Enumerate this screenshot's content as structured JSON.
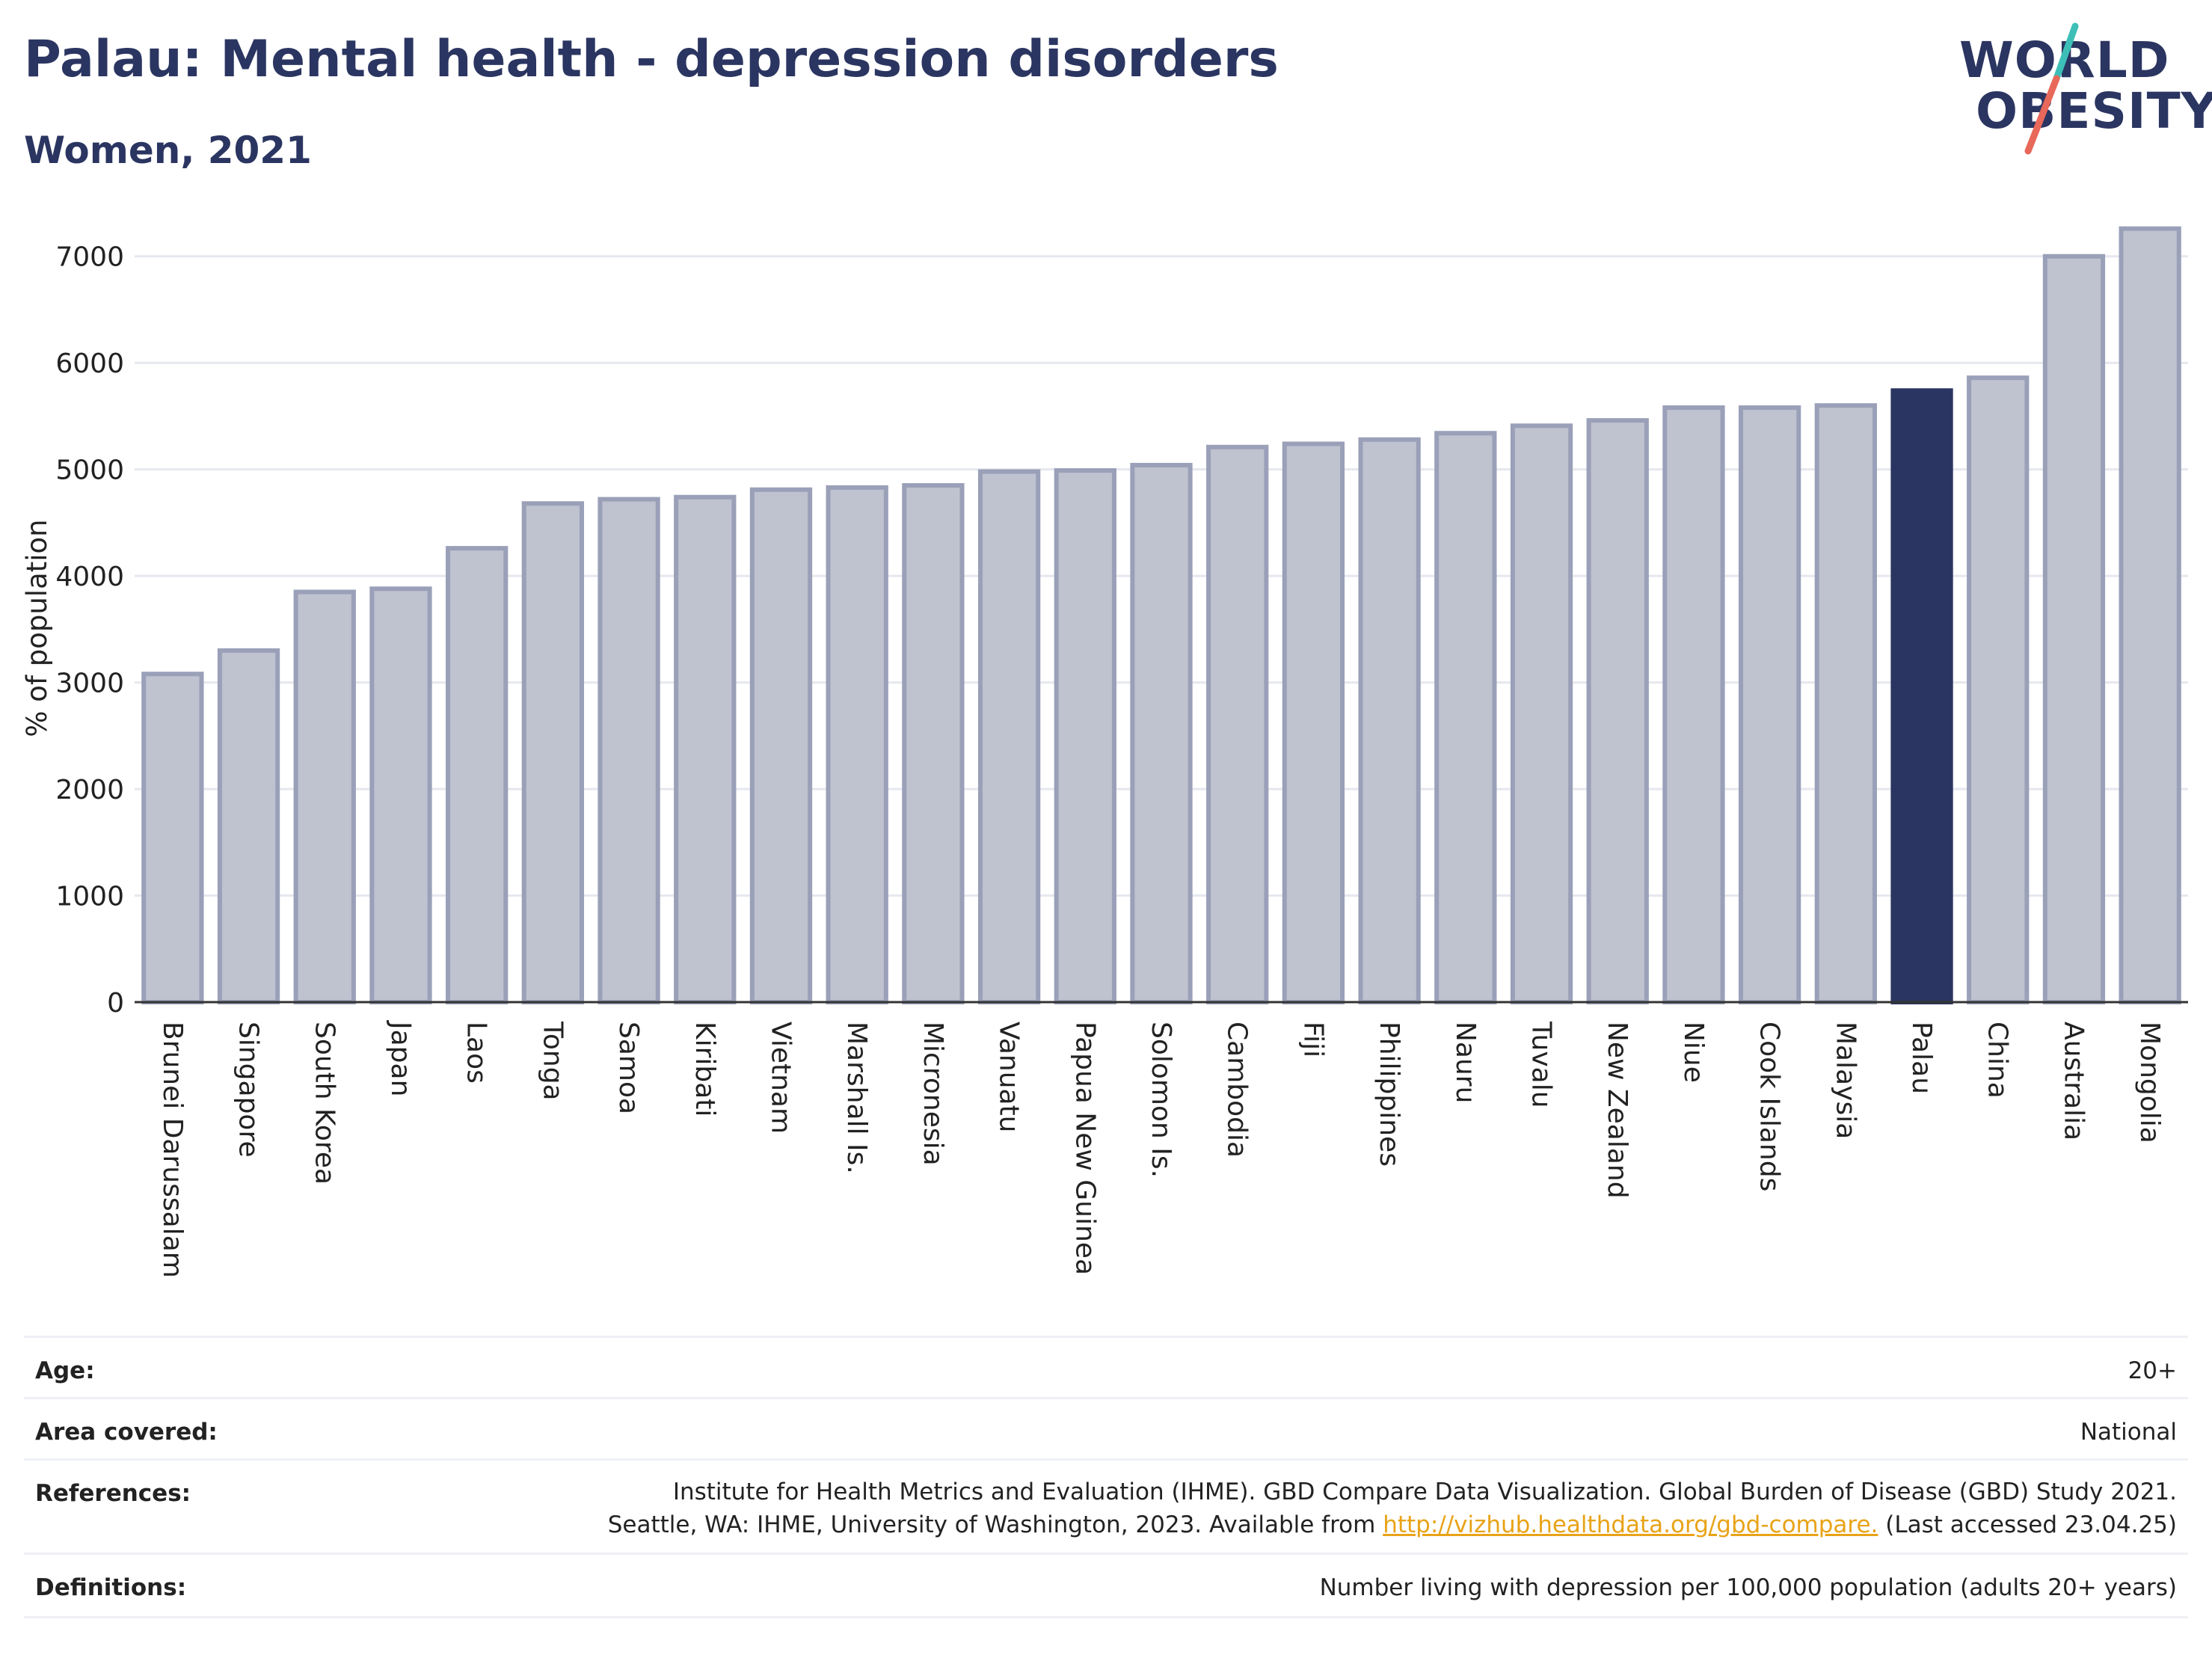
{
  "header": {
    "title": "Palau: Mental health - depression disorders",
    "subtitle": "Women, 2021"
  },
  "logo": {
    "line1": "WORLD",
    "line2": "OBESITY",
    "slash_colors": [
      "#3dbfb8",
      "#e8685a"
    ]
  },
  "chart_data": {
    "type": "bar",
    "ylabel": "% of population",
    "xlabel": "",
    "ylim": [
      0,
      7300
    ],
    "yticks": [
      0,
      1000,
      2000,
      3000,
      4000,
      5000,
      6000,
      7000
    ],
    "grid": true,
    "highlight": "Palau",
    "colors": {
      "bar": "#bfc2cf",
      "bar_edge": "#9aa0b8",
      "highlight": "#2b3561"
    },
    "categories": [
      "Brunei Darussalam",
      "Singapore",
      "South Korea",
      "Japan",
      "Laos",
      "Tonga",
      "Samoa",
      "Kiribati",
      "Vietnam",
      "Marshall Is.",
      "Micronesia",
      "Vanuatu",
      "Papua New Guinea",
      "Solomon Is.",
      "Cambodia",
      "Fiji",
      "Philippines",
      "Nauru",
      "Tuvalu",
      "New Zealand",
      "Niue",
      "Cook Islands",
      "Malaysia",
      "Palau",
      "China",
      "Australia",
      "Mongolia"
    ],
    "values": [
      3080,
      3300,
      3850,
      3880,
      4260,
      4680,
      4720,
      4740,
      4810,
      4830,
      4850,
      4980,
      4990,
      5040,
      5210,
      5240,
      5280,
      5340,
      5410,
      5460,
      5580,
      5580,
      5600,
      5740,
      5860,
      7000,
      7260
    ]
  },
  "meta": {
    "age": {
      "label": "Age:",
      "value": "20+"
    },
    "area": {
      "label": "Area covered:",
      "value": "National"
    },
    "references": {
      "label": "References:",
      "line1": "Institute for Health Metrics and Evaluation (IHME). GBD Compare Data Visualization. Global Burden of Disease (GBD) Study 2021.",
      "line2_pre": "Seattle, WA: IHME, University of Washington, 2023. Available from ",
      "link": "http://vizhub.healthdata.org/gbd-compare.",
      "line2_post": " (Last accessed 23.04.25)"
    },
    "definitions": {
      "label": "Definitions:",
      "value": "Number living with depression per 100,000 population (adults 20+ years)"
    }
  }
}
